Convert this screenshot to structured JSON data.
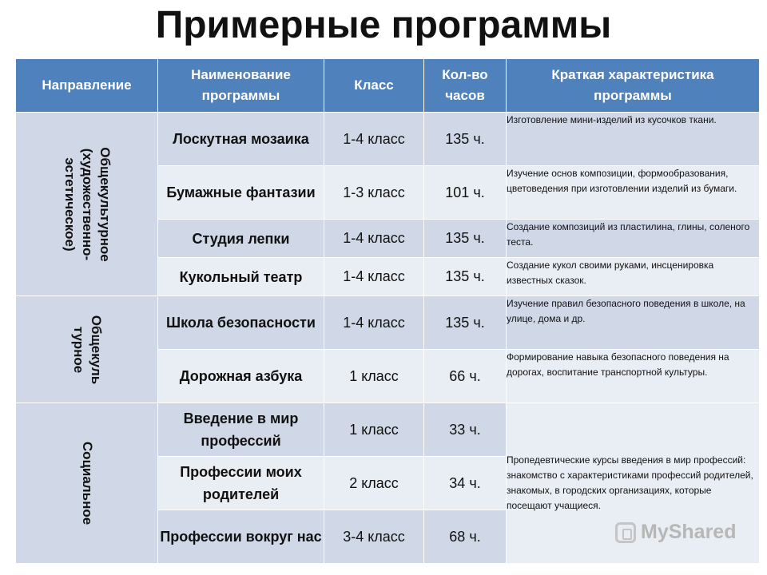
{
  "title": "Примерные программы",
  "headers": {
    "direction": "Направление",
    "name": "Наименование программы",
    "grade": "Класс",
    "hours": "Кол-во часов",
    "description": "Краткая характеристика программы"
  },
  "groups": [
    {
      "label": "Общекультурное (художественно-эстетическое)",
      "label_lines": [
        "Общекультурное",
        "(художественно-",
        "эстетическое)"
      ]
    },
    {
      "label": "Общекультурное",
      "label_lines": [
        "Общекуль",
        "турное"
      ]
    },
    {
      "label": "Социальное",
      "label_lines": [
        "Социальное"
      ]
    }
  ],
  "rows": [
    {
      "name": "Лоскутная мозаика",
      "grade": "1-4 класс",
      "hours": "135 ч.",
      "description": "Изготовление мини-изделий из кусочков ткани."
    },
    {
      "name": "Бумажные фантазии",
      "grade": "1-3 класс",
      "hours": "101 ч.",
      "description": "Изучение основ композиции, формообразования, цветоведения при изготовлении изделий из бумаги."
    },
    {
      "name": "Студия лепки",
      "grade": "1-4 класс",
      "hours": "135 ч.",
      "description": "Создание композиций из пластилина, глины, соленого теста."
    },
    {
      "name": "Кукольный театр",
      "grade": "1-4 класс",
      "hours": "135 ч.",
      "description": "Создание кукол своими руками, инсценировка известных сказок."
    },
    {
      "name": "Школа безопасности",
      "grade": "1-4 класс",
      "hours": "135 ч.",
      "description": "Изучение правил безопасного поведения в школе, на улице, дома и др."
    },
    {
      "name": "Дорожная азбука",
      "grade": "1 класс",
      "hours": "66 ч.",
      "description": "Формирование навыка безопасного поведения на дорогах, воспитание транспортной культуры."
    },
    {
      "name": "Введение в мир профессий",
      "grade": "1 класс",
      "hours": "33 ч.",
      "description": "Пропедевтические курсы введения в мир профессий: знакомство с характеристиками профессий родителей, знакомых, в городских организациях, которые посещают учащиеся."
    },
    {
      "name": "Профессии моих родителей",
      "grade": "2 класс",
      "hours": "34 ч."
    },
    {
      "name": "Профессии вокруг нас",
      "grade": "3-4 класс",
      "hours": "68 ч."
    }
  ],
  "watermark": "MyShared",
  "colors": {
    "header": "#4f81bd",
    "row_dark": "#d0d8e8",
    "row_light": "#e9edf4"
  }
}
